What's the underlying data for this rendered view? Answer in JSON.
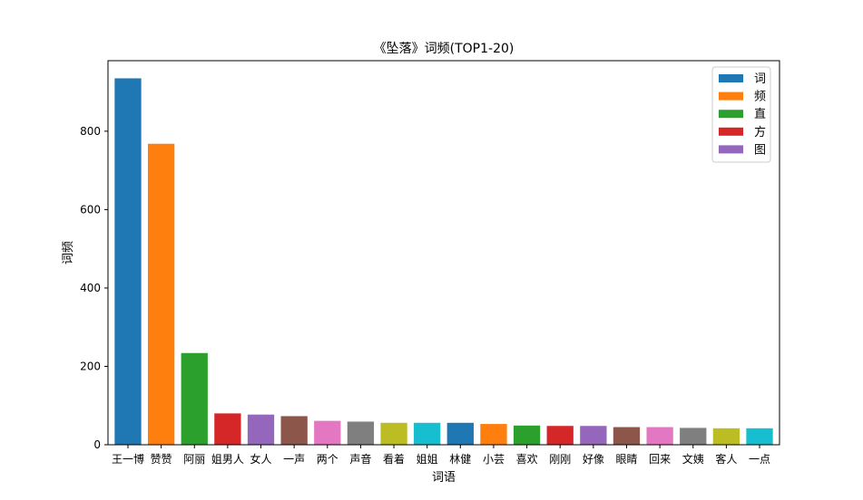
{
  "chart_data": {
    "type": "bar",
    "title": "《坠落》词频(TOP1-20)",
    "xlabel": "词语",
    "ylabel": "词频",
    "categories": [
      "王一博",
      "赞赞",
      "阿丽",
      "姐男人",
      "女人",
      "一声",
      "两个",
      "声音",
      "看着",
      "姐姐",
      "林健",
      "小芸",
      "喜欢",
      "刚刚",
      "好像",
      "眼睛",
      "回来",
      "文姨",
      "客人",
      "一点"
    ],
    "values": [
      935,
      768,
      234,
      80,
      77,
      73,
      61,
      59,
      56,
      56,
      56,
      53,
      49,
      48,
      48,
      45,
      45,
      43,
      42,
      42
    ],
    "colors": [
      "#1f77b4",
      "#ff7f0e",
      "#2ca02c",
      "#d62728",
      "#9467bd",
      "#8c564b",
      "#e377c2",
      "#7f7f7f",
      "#bcbd22",
      "#17becf",
      "#1f77b4",
      "#ff7f0e",
      "#2ca02c",
      "#d62728",
      "#9467bd",
      "#8c564b",
      "#e377c2",
      "#7f7f7f",
      "#bcbd22",
      "#17becf"
    ],
    "ylim": [
      0,
      980
    ],
    "yticks": [
      0,
      200,
      400,
      600,
      800
    ],
    "grid": false,
    "legend": {
      "placement": "top-right",
      "entries": [
        {
          "label": "词",
          "color": "#1f77b4"
        },
        {
          "label": "频",
          "color": "#ff7f0e"
        },
        {
          "label": "直",
          "color": "#2ca02c"
        },
        {
          "label": "方",
          "color": "#d62728"
        },
        {
          "label": "图",
          "color": "#9467bd"
        }
      ]
    }
  }
}
